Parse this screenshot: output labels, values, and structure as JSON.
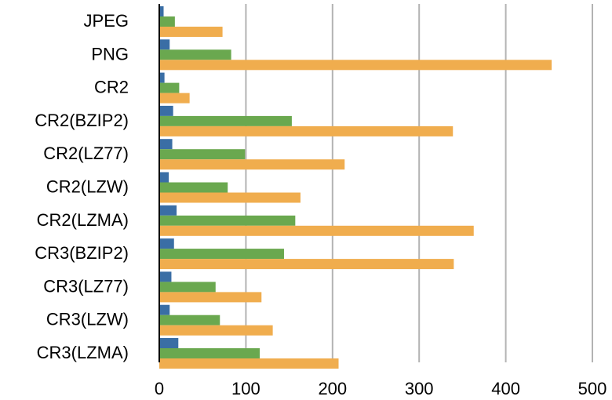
{
  "chart_data": {
    "type": "bar",
    "orientation": "horizontal",
    "title": "",
    "xlabel": "",
    "ylabel": "",
    "xlim": [
      0,
      500
    ],
    "x_ticks": [
      "0",
      "100",
      "200",
      "300",
      "400",
      "500"
    ],
    "grid": true,
    "legend": "none",
    "categories": [
      "JPEG",
      "PNG",
      "CR2",
      "CR2(BZIP2)",
      "CR2(LZ77)",
      "CR2(LZW)",
      "CR2(LZMA)",
      "CR3(BZIP2)",
      "CR3(LZ77)",
      "CR3(LZW)",
      "CR3(LZMA)"
    ],
    "series": [
      {
        "color": "#3a6ea5",
        "values": [
          5,
          12,
          6,
          16,
          15,
          11,
          20,
          17,
          14,
          12,
          22
        ]
      },
      {
        "color": "#6aa84f",
        "values": [
          18,
          83,
          23,
          153,
          99,
          79,
          157,
          144,
          65,
          70,
          116
        ]
      },
      {
        "color": "#f0ad4e",
        "values": [
          73,
          453,
          35,
          339,
          214,
          163,
          363,
          340,
          118,
          131,
          207
        ]
      }
    ]
  }
}
